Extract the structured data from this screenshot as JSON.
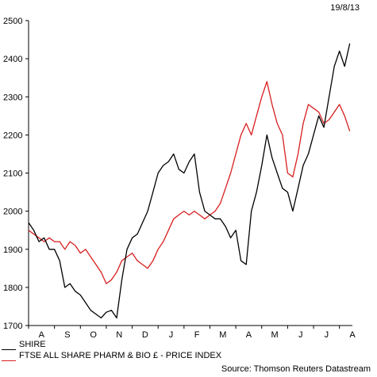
{
  "header": {
    "date": "19/8/13"
  },
  "source": "Source: Thomson Reuters Datastream",
  "colors": {
    "shire": "#000000",
    "ftse": "#d81e1e"
  },
  "chart_data": {
    "type": "line",
    "ylim": [
      1700,
      2500
    ],
    "yticks": [
      1700,
      1800,
      1900,
      2000,
      2100,
      2200,
      2300,
      2400,
      2500
    ],
    "xlim": [
      0,
      12.5
    ],
    "month_labels": [
      "A",
      "S",
      "O",
      "N",
      "D",
      "J",
      "F",
      "M",
      "A",
      "M",
      "J",
      "J",
      "A"
    ],
    "grid": false,
    "legend_position": "bottom-left",
    "series": [
      {
        "name": "SHIRE",
        "color": "#000000",
        "x": [
          0,
          0.2,
          0.4,
          0.6,
          0.8,
          1.0,
          1.2,
          1.4,
          1.6,
          1.8,
          2.0,
          2.2,
          2.4,
          2.6,
          2.8,
          3.0,
          3.2,
          3.4,
          3.6,
          3.8,
          4.0,
          4.2,
          4.4,
          4.6,
          4.8,
          5.0,
          5.2,
          5.4,
          5.6,
          5.8,
          6.0,
          6.2,
          6.4,
          6.6,
          6.8,
          7.0,
          7.2,
          7.4,
          7.6,
          7.8,
          8.0,
          8.2,
          8.4,
          8.6,
          8.8,
          9.0,
          9.2,
          9.4,
          9.6,
          9.8,
          10.0,
          10.2,
          10.4,
          10.6,
          10.8,
          11.0,
          11.2,
          11.4,
          11.6,
          11.8,
          12.0,
          12.2,
          12.4
        ],
        "values": [
          1970,
          1950,
          1920,
          1930,
          1900,
          1900,
          1870,
          1800,
          1810,
          1790,
          1780,
          1760,
          1740,
          1730,
          1720,
          1735,
          1740,
          1720,
          1820,
          1900,
          1930,
          1940,
          1970,
          2000,
          2050,
          2100,
          2120,
          2130,
          2150,
          2110,
          2100,
          2130,
          2150,
          2050,
          2000,
          1990,
          1980,
          1980,
          1960,
          1930,
          1950,
          1870,
          1860,
          2000,
          2050,
          2120,
          2200,
          2140,
          2100,
          2060,
          2050,
          2000,
          2060,
          2120,
          2150,
          2200,
          2250,
          2220,
          2300,
          2380,
          2420,
          2380,
          2440
        ]
      },
      {
        "name": "FTSE ALL SHARE PHARM & BIO £ - PRICE INDEX",
        "color": "#d81e1e",
        "x": [
          0,
          0.2,
          0.4,
          0.6,
          0.8,
          1.0,
          1.2,
          1.4,
          1.6,
          1.8,
          2.0,
          2.2,
          2.4,
          2.6,
          2.8,
          3.0,
          3.2,
          3.4,
          3.6,
          3.8,
          4.0,
          4.2,
          4.4,
          4.6,
          4.8,
          5.0,
          5.2,
          5.4,
          5.6,
          5.8,
          6.0,
          6.2,
          6.4,
          6.6,
          6.8,
          7.0,
          7.2,
          7.4,
          7.6,
          7.8,
          8.0,
          8.2,
          8.4,
          8.6,
          8.8,
          9.0,
          9.2,
          9.4,
          9.6,
          9.8,
          10.0,
          10.2,
          10.4,
          10.6,
          10.8,
          11.0,
          11.2,
          11.4,
          11.6,
          11.8,
          12.0,
          12.2,
          12.4
        ],
        "values": [
          1950,
          1940,
          1930,
          1920,
          1930,
          1920,
          1920,
          1900,
          1920,
          1910,
          1890,
          1900,
          1880,
          1860,
          1840,
          1810,
          1820,
          1840,
          1870,
          1880,
          1890,
          1870,
          1860,
          1850,
          1870,
          1900,
          1920,
          1950,
          1980,
          1990,
          2000,
          1990,
          2000,
          1990,
          1980,
          1990,
          2000,
          2020,
          2060,
          2100,
          2150,
          2200,
          2230,
          2200,
          2250,
          2300,
          2340,
          2280,
          2230,
          2200,
          2100,
          2090,
          2150,
          2230,
          2280,
          2270,
          2260,
          2230,
          2240,
          2260,
          2280,
          2250,
          2210
        ]
      }
    ]
  }
}
